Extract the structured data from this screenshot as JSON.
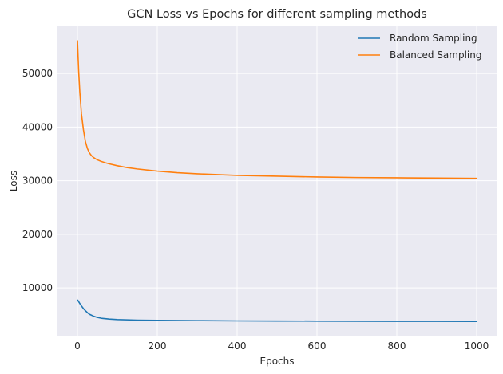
{
  "chart_data": {
    "type": "line",
    "title": "GCN Loss vs Epochs for different sampling methods",
    "xlabel": "Epochs",
    "ylabel": "Loss",
    "xlim": [
      -50,
      1050
    ],
    "ylim": [
      1100,
      58800
    ],
    "xticks": [
      0,
      200,
      400,
      600,
      800,
      1000
    ],
    "yticks": [
      10000,
      20000,
      30000,
      40000,
      50000
    ],
    "xtick_labels": [
      "0",
      "200",
      "400",
      "600",
      "800",
      "1000"
    ],
    "ytick_labels": [
      "10000",
      "20000",
      "30000",
      "40000",
      "50000"
    ],
    "grid": true,
    "legend_position": "upper-right",
    "series": [
      {
        "name": "Random Sampling",
        "color": "#1f77b4",
        "x": [
          0,
          5,
          10,
          15,
          20,
          25,
          30,
          40,
          50,
          60,
          80,
          100,
          150,
          200,
          300,
          400,
          500,
          600,
          700,
          800,
          900,
          1000
        ],
        "values": [
          7800,
          7200,
          6650,
          6150,
          5750,
          5400,
          5100,
          4750,
          4500,
          4350,
          4200,
          4100,
          4000,
          3950,
          3900,
          3850,
          3830,
          3810,
          3790,
          3770,
          3760,
          3750
        ]
      },
      {
        "name": "Balanced Sampling",
        "color": "#ff7f0e",
        "x": [
          0,
          3,
          6,
          10,
          15,
          20,
          25,
          30,
          35,
          40,
          45,
          50,
          60,
          70,
          80,
          100,
          125,
          150,
          200,
          250,
          300,
          400,
          500,
          600,
          700,
          800,
          900,
          1000
        ],
        "values": [
          56200,
          50500,
          46500,
          42500,
          39500,
          37300,
          36000,
          35200,
          34700,
          34350,
          34100,
          33900,
          33600,
          33350,
          33150,
          32800,
          32450,
          32200,
          31800,
          31500,
          31300,
          31000,
          30850,
          30700,
          30600,
          30550,
          30500,
          30450
        ]
      }
    ]
  }
}
